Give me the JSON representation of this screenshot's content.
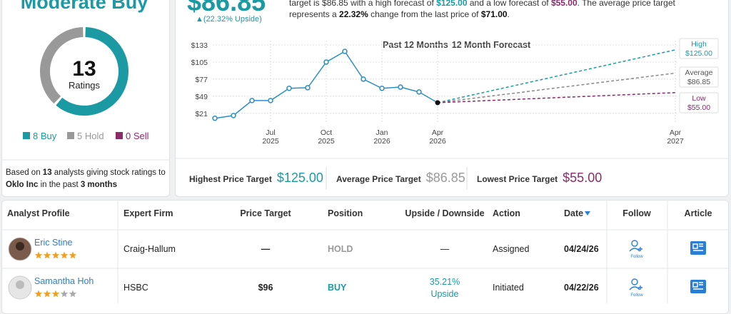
{
  "consensus": {
    "rating": "Moderate Buy",
    "total": 13,
    "total_label": "Ratings",
    "breakdown": [
      {
        "count": 8,
        "label": "Buy",
        "color": "#1b9aa3"
      },
      {
        "count": 5,
        "label": "Hold",
        "color": "#999999"
      },
      {
        "count": 0,
        "label": "Sell",
        "color": "#8c2a6b"
      }
    ],
    "note": [
      {
        "text": "Based on ",
        "bold": false
      },
      {
        "text": "13",
        "bold": true
      },
      {
        "text": " analysts giving stock ratings to ",
        "bold": false
      },
      {
        "text": "Oklo Inc",
        "bold": true
      },
      {
        "text": " in the past ",
        "bold": false
      },
      {
        "text": "3 months",
        "bold": true
      }
    ]
  },
  "price": {
    "average": "$86.85",
    "upside": "▲(22.32% Upside)"
  },
  "description": [
    {
      "text": "target is ",
      "style": "plain"
    },
    {
      "text": "$86.85",
      "style": "plain"
    },
    {
      "text": " with a high forecast of ",
      "style": "plain"
    },
    {
      "text": "$125.00",
      "style": "high"
    },
    {
      "text": " and a low forecast of ",
      "style": "plain"
    },
    {
      "text": "$55.00",
      "style": "low"
    },
    {
      "text": ". The average price target represents a ",
      "style": "plain"
    },
    {
      "text": "22.32%",
      "style": "bold"
    },
    {
      "text": " change from the last price of ",
      "style": "plain"
    },
    {
      "text": "$71.00",
      "style": "bold"
    },
    {
      "text": ".",
      "style": "plain"
    }
  ],
  "chart": {
    "type": "line",
    "title_past": "Past 12 Months",
    "title_forecast": "12 Month Forecast",
    "x": [
      "2025-04",
      "2025-05",
      "2025-06",
      "2025-07",
      "2025-08",
      "2025-09",
      "2025-10",
      "2025-11",
      "2025-12",
      "2026-01",
      "2026-02",
      "2026-03",
      "2026-04"
    ],
    "values": [
      13,
      17.5,
      42,
      42,
      62,
      63,
      105,
      122.5,
      77,
      62,
      64,
      56,
      38.5
    ],
    "color": "#2a8fc9",
    "ylim": [
      8,
      140
    ],
    "yticks": [
      {
        "value": 133,
        "label": "$133"
      },
      {
        "value": 105,
        "label": "$105"
      },
      {
        "value": 77,
        "label": "$77"
      },
      {
        "value": 49,
        "label": "$49"
      },
      {
        "value": 21,
        "label": "$21"
      }
    ],
    "xticks": [
      {
        "value": "2025-07",
        "label": [
          "Jul",
          "2025"
        ]
      },
      {
        "value": "2025-10",
        "label": [
          "Oct",
          "2025"
        ]
      },
      {
        "value": "2026-01",
        "label": [
          "Jan",
          "2026"
        ]
      },
      {
        "value": "2026-04",
        "label": [
          "Apr",
          "2026"
        ]
      },
      {
        "value": "2027-04",
        "label": [
          "Apr",
          "2027"
        ]
      }
    ],
    "forecast_x": "2027-04",
    "forecasts": [
      {
        "name": "High",
        "price": "$125.00",
        "value": 125,
        "color": "#1b9aa3"
      },
      {
        "name": "Average",
        "price": "$86.85",
        "value": 86.85,
        "color": "#888888"
      },
      {
        "name": "Low",
        "price": "$55.00",
        "value": 55,
        "color": "#8c2a6b"
      }
    ]
  },
  "targets": [
    {
      "label": "Highest Price Target",
      "value": "$125.00",
      "color": "#1b9aa3"
    },
    {
      "label": "Average Price Target",
      "value": "$86.85",
      "color": "#999999"
    },
    {
      "label": "Lowest Price Target",
      "value": "$55.00",
      "color": "#8c2a6b"
    }
  ],
  "table": {
    "columns": [
      "Analyst Profile",
      "Expert Firm",
      "Price Target",
      "Position",
      "Upside / Downside",
      "Action",
      "Date",
      "Follow",
      "Article"
    ],
    "follow_label": "Follow",
    "rows": [
      {
        "name": "Eric Stine",
        "stars": 5,
        "firm": "Craig-Hallum",
        "price_target": "—",
        "position": "HOLD",
        "position_color": "#999999",
        "upside": {
          "value": "—"
        },
        "action": "Assigned",
        "date": "04/24/26"
      },
      {
        "name": "Samantha Hoh",
        "stars": 3,
        "firm": "HSBC",
        "price_target": "$96",
        "position": "BUY",
        "position_color": "#1b9aa3",
        "upside": {
          "value": "35.21%",
          "label": "Upside"
        },
        "action": "Initiated",
        "date": "04/22/26"
      }
    ]
  }
}
